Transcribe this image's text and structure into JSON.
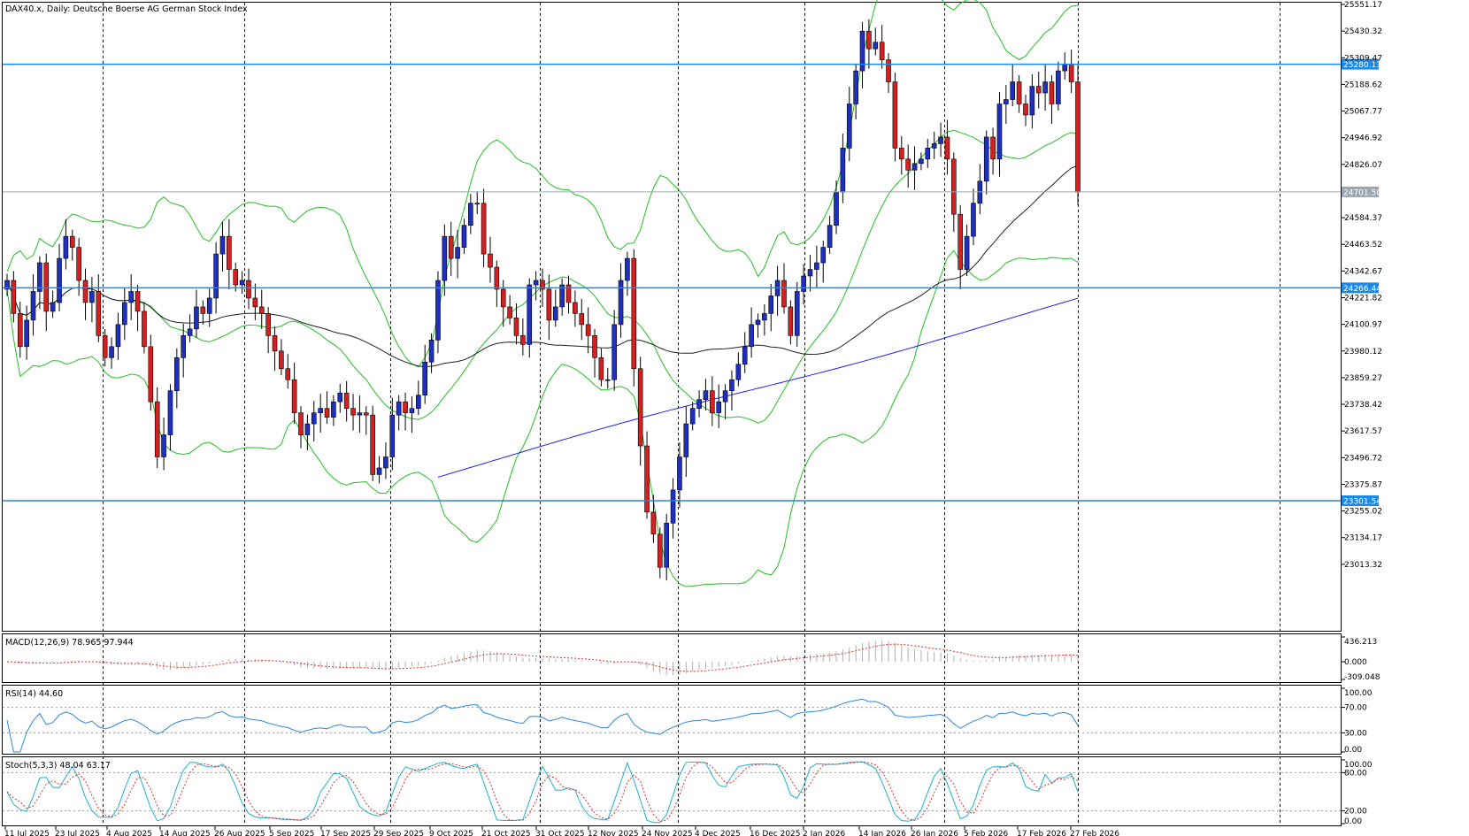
{
  "window_title": "DAX40.x, Daily:  Deutsche Boerse AG German Stock Index",
  "colors": {
    "bull": "#1f2fc0",
    "bear": "#d42020",
    "bollinger": "#22c022",
    "ma_short": "#202020",
    "ma_long": "#2020e0",
    "hline": "#1e88e5",
    "hline_current": "#9aa6b2",
    "macd_signal": "#e03030",
    "rsi": "#2e86de",
    "stoch_main": "#20b0d0",
    "stoch_signal": "#e03030"
  },
  "chart_data": [
    {
      "type": "candlestick",
      "title": "DAX40.x, Daily:  Deutsche Boerse AG German Stock Index",
      "ylim": [
        22892.47,
        25551.17
      ],
      "y_ticks": [
        "25551.17",
        "25430.32",
        "25309.47",
        "25188.62",
        "25067.77",
        "24946.92",
        "24826.07",
        "24584.37",
        "24463.52",
        "24342.67",
        "24221.82",
        "24100.97",
        "23980.12",
        "23859.27",
        "23738.42",
        "23617.57",
        "23496.72",
        "23375.87",
        "23255.02",
        "23134.17",
        "23013.32"
      ],
      "x_labels": [
        "11 Jul 2025",
        "23 Jul 2025",
        "4 Aug 2025",
        "14 Aug 2025",
        "26 Aug 2025",
        "5 Sep 2025",
        "17 Sep 2025",
        "29 Sep 2025",
        "9 Oct 2025",
        "21 Oct 2025",
        "31 Oct 2025",
        "12 Nov 2025",
        "24 Nov 2025",
        "4 Dec 2025",
        "16 Dec 2025",
        "2 Jan 2026",
        "14 Jan 2026",
        "26 Jan 2026",
        "5 Feb 2026",
        "17 Feb 2026",
        "27 Feb 2026"
      ],
      "price_levels": [
        {
          "value": 25280.13,
          "label": "25280.13",
          "kind": "level"
        },
        {
          "value": 24701.5,
          "label": "24701.50",
          "kind": "current"
        },
        {
          "value": 24266.44,
          "label": "24266.44",
          "kind": "level"
        },
        {
          "value": 23301.54,
          "label": "23301.54",
          "kind": "level"
        }
      ],
      "ohlc_close": [
        24300,
        24150,
        24000,
        24120,
        24250,
        24380,
        24160,
        24200,
        24400,
        24500,
        24450,
        24300,
        24200,
        24250,
        24050,
        23950,
        24000,
        24100,
        24200,
        24250,
        24160,
        24000,
        23750,
        23500,
        23600,
        23800,
        23950,
        24050,
        24080,
        24180,
        24150,
        24220,
        24420,
        24500,
        24350,
        24280,
        24300,
        24220,
        24180,
        24150,
        24050,
        23980,
        23900,
        23850,
        23700,
        23600,
        23650,
        23700,
        23720,
        23680,
        23750,
        23790,
        23720,
        23690,
        23700,
        23690,
        23420,
        23450,
        23500,
        23690,
        23750,
        23700,
        23720,
        23780,
        23930,
        24030,
        24300,
        24500,
        24400,
        24450,
        24550,
        24650,
        24650,
        24420,
        24360,
        24260,
        24180,
        24130,
        24050,
        24010,
        24280,
        24300,
        24260,
        24120,
        24180,
        24280,
        24200,
        24150,
        24100,
        24050,
        23950,
        23850,
        23850,
        24100,
        24300,
        24400,
        23900,
        23550,
        23250,
        23150,
        23000,
        23200,
        23350,
        23500,
        23650,
        23720,
        23760,
        23800,
        23700,
        23750,
        23800,
        23850,
        23920,
        24000,
        24100,
        24120,
        24150,
        24230,
        24300,
        24180,
        24050,
        24250,
        24320,
        24350,
        24380,
        24450,
        24550,
        24700,
        24900,
        25100,
        25250,
        25430,
        25350,
        25380,
        25300,
        25200,
        24900,
        24850,
        24800,
        24830,
        24850,
        24900,
        24920,
        24950,
        24850,
        24600,
        24350,
        24500,
        24650,
        24750,
        24950,
        24850,
        25100,
        25120,
        25200,
        25100,
        25050,
        25180,
        25150,
        25200,
        25100,
        25250,
        25280,
        25200,
        24700
      ],
      "indicators": {
        "ma_short": "dark line",
        "ma_long": "blue line",
        "bollinger_bands": "green lines"
      }
    },
    {
      "type": "line",
      "title": "MACD(12,26,9) 78.965 97.944",
      "y_ticks": [
        "436.213",
        "0.000",
        "-309.048"
      ],
      "ylim": [
        -309.048,
        436.213
      ]
    },
    {
      "type": "line",
      "title": "RSI(14) 44.60",
      "y_ticks": [
        "100.00",
        "70.00",
        "30.00",
        "0.00"
      ],
      "ylim": [
        0,
        100
      ],
      "levels": [
        70,
        30
      ]
    },
    {
      "type": "line",
      "title": "Stoch(5,3,3) 48.04 63.17",
      "y_ticks": [
        "100.00",
        "80.00",
        "20.00",
        "0.00"
      ],
      "ylim": [
        0,
        100
      ],
      "levels": [
        80,
        20
      ]
    }
  ]
}
